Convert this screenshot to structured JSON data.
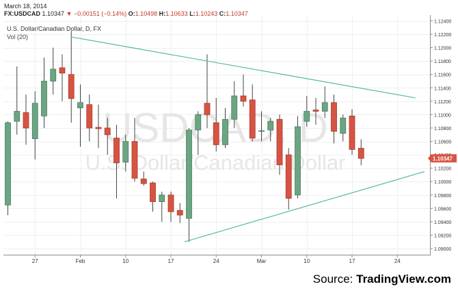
{
  "header": {
    "date": "March 18, 2014",
    "symbol": "FX:USDCAD",
    "last": "1.10347",
    "change": "−0.00151 (−0.14%)",
    "ohlc": [
      {
        "label": "O:",
        "value": "1.10498"
      },
      {
        "label": "H:",
        "value": "1.10633"
      },
      {
        "label": "L:",
        "value": "1.10243"
      },
      {
        "label": "C:",
        "value": "1.10347"
      }
    ],
    "instrument": "U.S. Dollar/Canadian Dollar, D, FX",
    "indicator": "Vol (20)"
  },
  "watermark": {
    "symbol": "USDCAD, D",
    "name": "U.S. Dollar/Canadian Dollar"
  },
  "source": {
    "prefix": "Source:",
    "brand": "TradingView.com"
  },
  "colors": {
    "up": "#6ba583",
    "down": "#d75442",
    "trendline": "#57b8a0",
    "price_tag": "#d75442"
  },
  "chart_data": {
    "type": "candlestick",
    "ylim": [
      1.089,
      1.1245
    ],
    "y_ticks": [
      "1.12400",
      "1.12200",
      "1.12000",
      "1.11800",
      "1.11600",
      "1.11400",
      "1.11200",
      "1.11000",
      "1.10800",
      "1.10600",
      "1.10400",
      "1.10200",
      "1.10000",
      "1.09800",
      "1.09600",
      "1.09400",
      "1.09200",
      "1.09000"
    ],
    "x_ticks": [
      {
        "label": "27",
        "index": 3
      },
      {
        "label": "Feb",
        "index": 8
      },
      {
        "label": "10",
        "index": 13
      },
      {
        "label": "17",
        "index": 18
      },
      {
        "label": "24",
        "index": 23
      },
      {
        "label": "Mar",
        "index": 28
      },
      {
        "label": "10",
        "index": 33
      },
      {
        "label": "17",
        "index": 38
      },
      {
        "label": "24",
        "index": 43
      }
    ],
    "last_price_label": "1.10347",
    "candles": [
      {
        "o": 1.0965,
        "h": 1.109,
        "l": 1.095,
        "c": 1.1088
      },
      {
        "o": 1.109,
        "h": 1.1172,
        "l": 1.107,
        "c": 1.1105
      },
      {
        "o": 1.1103,
        "h": 1.113,
        "l": 1.1055,
        "c": 1.108
      },
      {
        "o": 1.1064,
        "h": 1.1135,
        "l": 1.1033,
        "c": 1.1117
      },
      {
        "o": 1.1098,
        "h": 1.1185,
        "l": 1.108,
        "c": 1.115
      },
      {
        "o": 1.115,
        "h": 1.12,
        "l": 1.113,
        "c": 1.1168
      },
      {
        "o": 1.117,
        "h": 1.119,
        "l": 1.112,
        "c": 1.1162
      },
      {
        "o": 1.116,
        "h": 1.1225,
        "l": 1.1088,
        "c": 1.1124
      },
      {
        "o": 1.111,
        "h": 1.1145,
        "l": 1.1052,
        "c": 1.1118
      },
      {
        "o": 1.1115,
        "h": 1.113,
        "l": 1.106,
        "c": 1.108
      },
      {
        "o": 1.1081,
        "h": 1.1115,
        "l": 1.105,
        "c": 1.1079
      },
      {
        "o": 1.108,
        "h": 1.1095,
        "l": 1.104,
        "c": 1.107
      },
      {
        "o": 1.1065,
        "h": 1.1085,
        "l": 1.0975,
        "c": 1.1028
      },
      {
        "o": 1.1029,
        "h": 1.107,
        "l": 1.1015,
        "c": 1.106
      },
      {
        "o": 1.106,
        "h": 1.1095,
        "l": 1.1,
        "c": 1.1005
      },
      {
        "o": 1.1004,
        "h": 1.1015,
        "l": 1.0994,
        "c": 1.0997
      },
      {
        "o": 1.0998,
        "h": 1.1,
        "l": 1.0955,
        "c": 1.097
      },
      {
        "o": 1.097,
        "h": 1.0985,
        "l": 1.094,
        "c": 1.098
      },
      {
        "o": 1.098,
        "h": 1.0985,
        "l": 1.094,
        "c": 1.0955
      },
      {
        "o": 1.0957,
        "h": 1.0968,
        "l": 1.0938,
        "c": 1.095
      },
      {
        "o": 1.0945,
        "h": 1.108,
        "l": 1.091,
        "c": 1.1077
      },
      {
        "o": 1.1077,
        "h": 1.1105,
        "l": 1.104,
        "c": 1.11
      },
      {
        "o": 1.1117,
        "h": 1.119,
        "l": 1.108,
        "c": 1.11
      },
      {
        "o": 1.1088,
        "h": 1.1125,
        "l": 1.1045,
        "c": 1.1055
      },
      {
        "o": 1.1055,
        "h": 1.111,
        "l": 1.105,
        "c": 1.1093
      },
      {
        "o": 1.1093,
        "h": 1.115,
        "l": 1.108,
        "c": 1.1128
      },
      {
        "o": 1.1128,
        "h": 1.116,
        "l": 1.1112,
        "c": 1.112
      },
      {
        "o": 1.1122,
        "h": 1.1145,
        "l": 1.106,
        "c": 1.1065
      },
      {
        "o": 1.1075,
        "h": 1.1105,
        "l": 1.106,
        "c": 1.1076
      },
      {
        "o": 1.1077,
        "h": 1.1095,
        "l": 1.106,
        "c": 1.109
      },
      {
        "o": 1.1093,
        "h": 1.11,
        "l": 1.101,
        "c": 1.1025
      },
      {
        "o": 1.104,
        "h": 1.105,
        "l": 1.0958,
        "c": 1.0975
      },
      {
        "o": 1.098,
        "h": 1.1098,
        "l": 1.0975,
        "c": 1.1082
      },
      {
        "o": 1.109,
        "h": 1.1128,
        "l": 1.1082,
        "c": 1.1105
      },
      {
        "o": 1.1107,
        "h": 1.1125,
        "l": 1.1085,
        "c": 1.1105
      },
      {
        "o": 1.1105,
        "h": 1.1142,
        "l": 1.1095,
        "c": 1.1118
      },
      {
        "o": 1.1118,
        "h": 1.113,
        "l": 1.1057,
        "c": 1.1075
      },
      {
        "o": 1.1072,
        "h": 1.11,
        "l": 1.106,
        "c": 1.1095
      },
      {
        "o": 1.1098,
        "h": 1.1108,
        "l": 1.104,
        "c": 1.1048
      },
      {
        "o": 1.10498,
        "h": 1.10633,
        "l": 1.10243,
        "c": 1.10347
      }
    ],
    "trendlines": [
      {
        "x1": 7.0,
        "y1": 1.1216,
        "x2": 45.0,
        "y2": 1.1125
      },
      {
        "x1": 19.5,
        "y1": 1.091,
        "x2": 46.0,
        "y2": 1.1015
      }
    ]
  }
}
